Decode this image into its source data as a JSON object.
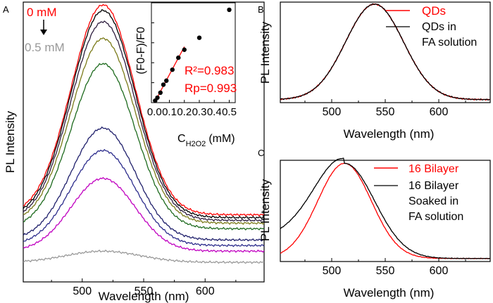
{
  "chart_data": [
    {
      "type": "line",
      "panel_label": "A",
      "xlabel": "Wavelength (nm)",
      "ylabel": "PL Intensity",
      "xlim": [
        452,
        648
      ],
      "ylim": [
        0,
        1.0
      ],
      "x_ticks": [
        500,
        550,
        600
      ],
      "x_tick_labels": [
        "500",
        "550",
        "600"
      ],
      "peak_x": 517,
      "annotation_top": "0 mM",
      "annotation_bottom": "0.5 mM",
      "annotation_top_color": "#ff0000",
      "annotation_bottom_color": "#999999",
      "series": [
        {
          "color": "#ff0000",
          "baseline": 0.24,
          "peak": 0.99,
          "width": 26
        },
        {
          "color": "#000000",
          "baseline": 0.23,
          "peak": 0.97,
          "width": 26
        },
        {
          "color": "#2f1f3f",
          "baseline": 0.22,
          "peak": 0.93,
          "width": 26
        },
        {
          "color": "#7b7b1a",
          "baseline": 0.21,
          "peak": 0.87,
          "width": 26
        },
        {
          "color": "#1e6b1e",
          "baseline": 0.19,
          "peak": 0.78,
          "width": 26
        },
        {
          "color": "#1f1f6b",
          "baseline": 0.15,
          "peak": 0.55,
          "width": 26
        },
        {
          "color": "#2c2c8c",
          "baseline": 0.13,
          "peak": 0.47,
          "width": 26
        },
        {
          "color": "#c000c0",
          "baseline": 0.11,
          "peak": 0.37,
          "width": 26
        },
        {
          "color": "#999999",
          "baseline": 0.07,
          "peak": 0.11,
          "width": 30
        }
      ]
    },
    {
      "type": "scatter",
      "panel_label": "inset",
      "ylabel": "(F0-F)/F0",
      "xlabel": "CH2O2 (mM)",
      "xlim": [
        -0.02,
        0.54
      ],
      "ylim": [
        0,
        1.0
      ],
      "x_ticks": [
        0.0,
        0.1,
        0.2,
        0.3,
        0.4,
        0.5
      ],
      "x_tick_labels": [
        "0.0",
        "0.1",
        "0.2",
        "0.3",
        "0.4",
        "0.5"
      ],
      "x": [
        0.005,
        0.02,
        0.04,
        0.06,
        0.08,
        0.12,
        0.16,
        0.2,
        0.3,
        0.5
      ],
      "y": [
        0.02,
        0.05,
        0.1,
        0.18,
        0.22,
        0.33,
        0.45,
        0.53,
        0.65,
        0.93
      ],
      "fit": {
        "x": [
          0.0,
          0.2
        ],
        "y": [
          0.0,
          0.56
        ],
        "color": "#ff0000"
      },
      "annotation_r2": "R²=0.983",
      "annotation_rp": "Rp=0.993"
    },
    {
      "type": "line",
      "panel_label": "B",
      "xlabel": "Wavelength (nm)",
      "ylabel": "PL Intensity",
      "xlim": [
        452,
        648
      ],
      "ylim": [
        0,
        1.0
      ],
      "x_ticks": [
        500,
        550,
        600
      ],
      "x_tick_labels": [
        "500",
        "550",
        "600"
      ],
      "peak_x": 540,
      "legend_placement": "top-right",
      "series": [
        {
          "name": "QDs",
          "color": "#ff0000",
          "baseline": 0.03,
          "peak": 0.98,
          "width": 27
        },
        {
          "name": "QDs in FA solution",
          "color": "#000000",
          "baseline": 0.03,
          "peak": 0.98,
          "width": 27
        }
      ]
    },
    {
      "type": "line",
      "panel_label": "C",
      "xlabel": "Wavelength (nm)",
      "ylabel": "PL Intensity",
      "xlim": [
        452,
        648
      ],
      "ylim": [
        0,
        1.0
      ],
      "x_ticks": [
        500,
        550,
        600
      ],
      "x_tick_labels": [
        "500",
        "550",
        "600"
      ],
      "peak_x": 512,
      "legend_placement": "top-right",
      "series": [
        {
          "name": "16 Bilayer",
          "color": "#ff0000",
          "baseline": 0.03,
          "peak": 0.97,
          "width": 25
        },
        {
          "name": "16 Bilayer Soaked in FA solution",
          "color": "#000000",
          "baseline": 0.03,
          "peak": 0.97,
          "width": 28
        }
      ]
    }
  ],
  "texts": {
    "panel_a": "A",
    "panel_b": "B",
    "panel_c": "C",
    "label_0mm": "0 mM",
    "label_05mm": "0.5 mM",
    "ylabel": "PL Intensity",
    "xlabel": "Wavelength (nm)",
    "inset_ylabel": "(F0-F)/F0",
    "inset_r2": "R²=0.983",
    "inset_rp": "Rp=0.993",
    "inset_xlabel_main": "C",
    "inset_xlabel_sub": "H2O2",
    "inset_xlabel_unit": "(mM)",
    "legend_b_1": "QDs",
    "legend_b_2_line1": "QDs in",
    "legend_b_2_line2": "FA solution",
    "legend_c_1": "16 Bilayer",
    "legend_c_2_line1": "16 Bilayer",
    "legend_c_2_line2": "Soaked in",
    "legend_c_2_line3": "FA solution"
  }
}
